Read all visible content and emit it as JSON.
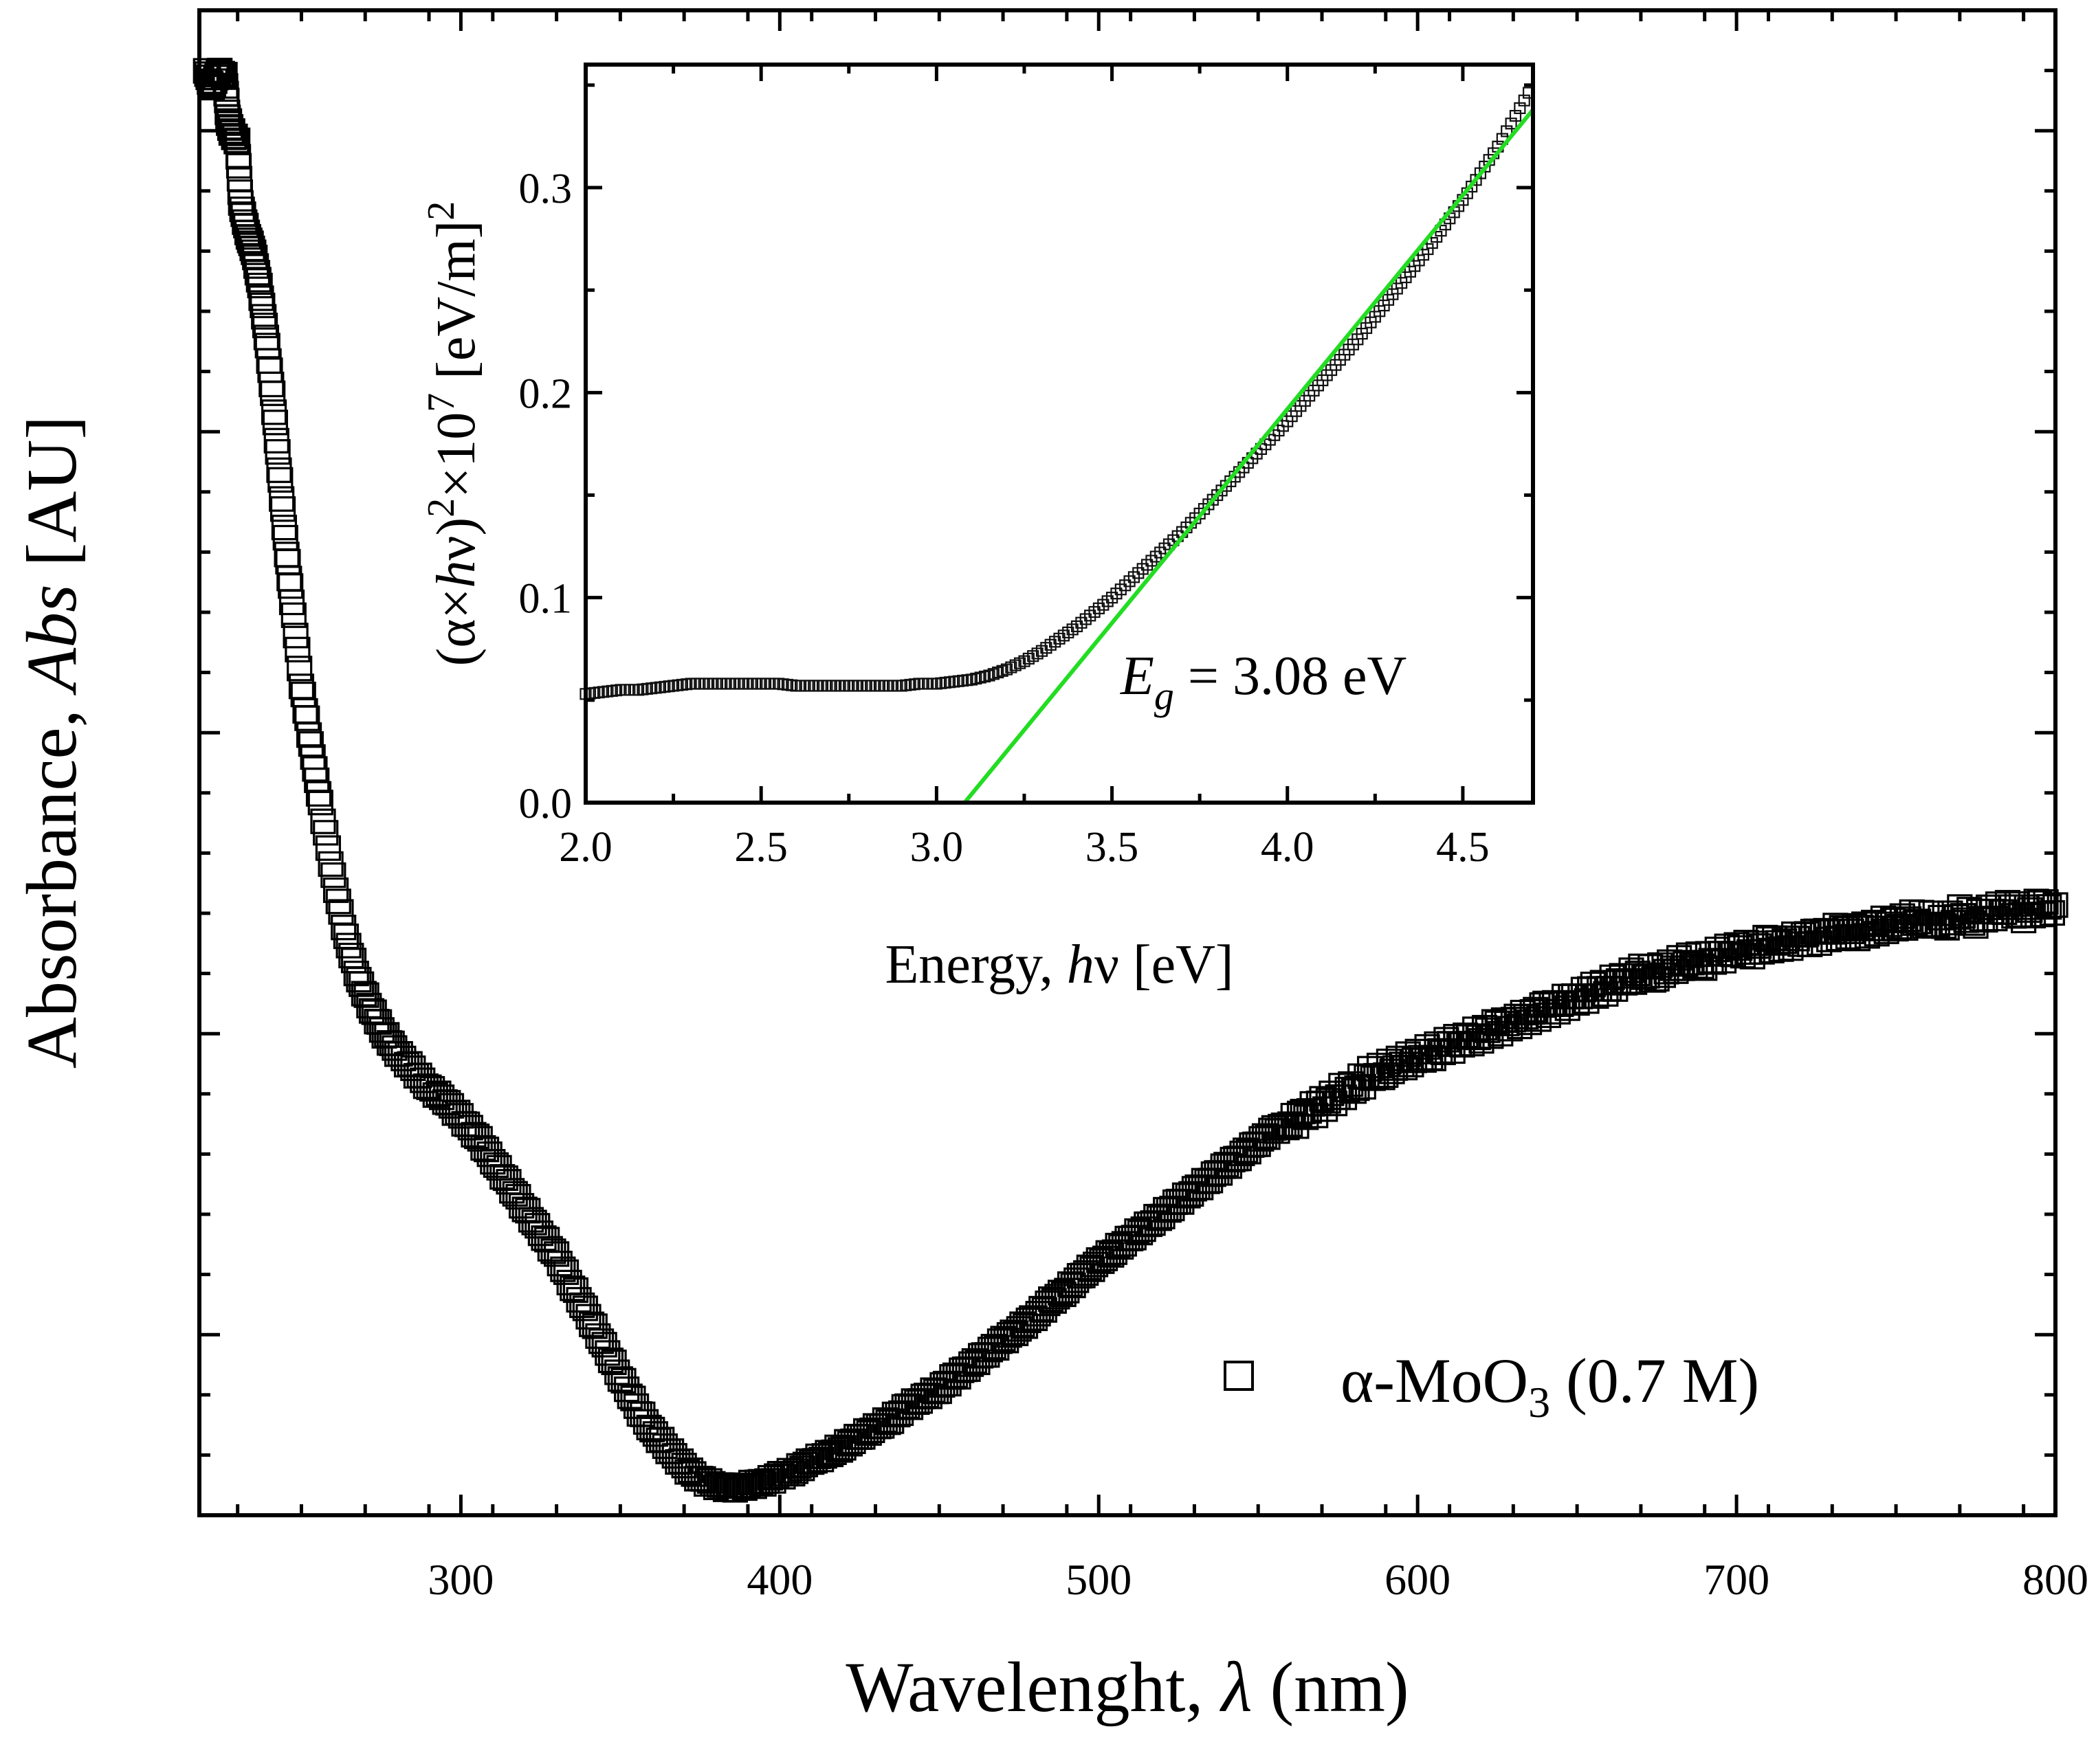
{
  "chart_data": [
    {
      "type": "scatter",
      "title": "",
      "xlabel": {
        "main": "Wavelenght, ",
        "sym": "λ",
        "unit": " (nm)"
      },
      "ylabel": {
        "main": "Absorbance, ",
        "sym": "Abs",
        "unit": " [AU]"
      },
      "xlim": [
        218,
        800
      ],
      "ylim": [
        0.2,
        2.7
      ],
      "xticks": [
        300,
        400,
        500,
        600,
        700,
        800
      ],
      "xtick_labels": [
        "300",
        "400",
        "500",
        "600",
        "700",
        "800"
      ],
      "yticks_unlabeled": [
        0.5,
        1.0,
        1.5,
        2.0,
        2.5
      ],
      "grid": false,
      "legend": {
        "position": "bottom-right",
        "marker": "open-square",
        "label_parts": [
          "α-MoO",
          "3",
          " (0.7 M)"
        ]
      },
      "series": [
        {
          "name": "α-MoO3 (0.7 M)",
          "marker": "open-square",
          "points": [
            [
              220,
              2.6
            ],
            [
              222,
              2.57
            ],
            [
              224,
              2.6
            ],
            [
              226,
              2.59
            ],
            [
              227,
              2.52
            ],
            [
              228,
              2.5
            ],
            [
              230,
              2.48
            ],
            [
              231,
              2.38
            ],
            [
              233,
              2.33
            ],
            [
              235,
              2.3
            ],
            [
              237,
              2.24
            ],
            [
              239,
              2.16
            ],
            [
              241,
              2.06
            ],
            [
              243,
              1.94
            ],
            [
              245,
              1.82
            ],
            [
              247,
              1.72
            ],
            [
              250,
              1.58
            ],
            [
              253,
              1.48
            ],
            [
              256,
              1.38
            ],
            [
              260,
              1.26
            ],
            [
              264,
              1.16
            ],
            [
              268,
              1.09
            ],
            [
              272,
              1.04
            ],
            [
              276,
              1.0
            ],
            [
              280,
              0.97
            ],
            [
              285,
              0.94
            ],
            [
              290,
              0.91
            ],
            [
              295,
              0.89
            ],
            [
              300,
              0.86
            ],
            [
              305,
              0.83
            ],
            [
              310,
              0.79
            ],
            [
              315,
              0.75
            ],
            [
              320,
              0.71
            ],
            [
              325,
              0.67
            ],
            [
              330,
              0.63
            ],
            [
              335,
              0.58
            ],
            [
              340,
              0.53
            ],
            [
              345,
              0.48
            ],
            [
              350,
              0.43
            ],
            [
              355,
              0.38
            ],
            [
              360,
              0.34
            ],
            [
              365,
              0.31
            ],
            [
              370,
              0.28
            ],
            [
              375,
              0.26
            ],
            [
              380,
              0.25
            ],
            [
              385,
              0.245
            ],
            [
              390,
              0.25
            ],
            [
              395,
              0.255
            ],
            [
              400,
              0.265
            ],
            [
              405,
              0.275
            ],
            [
              410,
              0.29
            ],
            [
              415,
              0.3
            ],
            [
              420,
              0.315
            ],
            [
              425,
              0.33
            ],
            [
              430,
              0.345
            ],
            [
              435,
              0.36
            ],
            [
              440,
              0.38
            ],
            [
              445,
              0.395
            ],
            [
              450,
              0.41
            ],
            [
              455,
              0.43
            ],
            [
              460,
              0.45
            ],
            [
              465,
              0.47
            ],
            [
              470,
              0.49
            ],
            [
              475,
              0.51
            ],
            [
              480,
              0.53
            ],
            [
              485,
              0.555
            ],
            [
              490,
              0.575
            ],
            [
              495,
              0.6
            ],
            [
              500,
              0.62
            ],
            [
              505,
              0.64
            ],
            [
              510,
              0.66
            ],
            [
              515,
              0.68
            ],
            [
              520,
              0.7
            ],
            [
              525,
              0.72
            ],
            [
              530,
              0.74
            ],
            [
              535,
              0.76
            ],
            [
              540,
              0.78
            ],
            [
              545,
              0.8
            ],
            [
              550,
              0.82
            ],
            [
              555,
              0.84
            ],
            [
              560,
              0.85
            ],
            [
              565,
              0.87
            ],
            [
              570,
              0.88
            ],
            [
              575,
              0.9
            ],
            [
              580,
              0.91
            ],
            [
              585,
              0.93
            ],
            [
              590,
              0.94
            ],
            [
              595,
              0.95
            ],
            [
              600,
              0.96
            ],
            [
              605,
              0.97
            ],
            [
              610,
              0.98
            ],
            [
              615,
              0.99
            ],
            [
              620,
              1.0
            ],
            [
              625,
              1.01
            ],
            [
              630,
              1.02
            ],
            [
              635,
              1.03
            ],
            [
              640,
              1.04
            ],
            [
              645,
              1.05
            ],
            [
              650,
              1.06
            ],
            [
              655,
              1.07
            ],
            [
              660,
              1.08
            ],
            [
              665,
              1.09
            ],
            [
              670,
              1.1
            ],
            [
              675,
              1.1
            ],
            [
              680,
              1.11
            ],
            [
              685,
              1.12
            ],
            [
              690,
              1.12
            ],
            [
              695,
              1.13
            ],
            [
              700,
              1.14
            ],
            [
              705,
              1.14
            ],
            [
              710,
              1.15
            ],
            [
              715,
              1.15
            ],
            [
              720,
              1.16
            ],
            [
              725,
              1.16
            ],
            [
              730,
              1.17
            ],
            [
              735,
              1.17
            ],
            [
              740,
              1.17
            ],
            [
              745,
              1.18
            ],
            [
              750,
              1.18
            ],
            [
              755,
              1.19
            ],
            [
              760,
              1.19
            ],
            [
              765,
              1.18
            ],
            [
              770,
              1.2
            ],
            [
              775,
              1.19
            ],
            [
              780,
              1.2
            ],
            [
              785,
              1.21
            ],
            [
              790,
              1.2
            ],
            [
              795,
              1.21
            ],
            [
              800,
              1.21
            ]
          ]
        }
      ]
    },
    {
      "type": "scatter",
      "role": "inset",
      "title": "",
      "xlabel": {
        "main": "Energy, ",
        "sym": "h",
        "unit": "ν [eV]"
      },
      "ylabel": {
        "pre": "(α×",
        "sym": "h",
        "mid": "ν)",
        "sup1": "2",
        "mid2": "×10",
        "sup2": "7",
        "post": " [eV/m]",
        "sup3": "2"
      },
      "xlim": [
        2.0,
        4.7
      ],
      "ylim": [
        0.0,
        0.36
      ],
      "xticks": [
        2.0,
        2.5,
        3.0,
        3.5,
        4.0,
        4.5
      ],
      "xtick_labels": [
        "2.0",
        "2.5",
        "3.0",
        "3.5",
        "4.0",
        "4.5"
      ],
      "yticks": [
        0.0,
        0.1,
        0.2,
        0.3
      ],
      "ytick_labels": [
        "0.0",
        "0.1",
        "0.2",
        "0.3"
      ],
      "grid": false,
      "annotation": {
        "sym": "E",
        "sub": "g",
        "text": " = 3.08 eV"
      },
      "series": [
        {
          "marker": "open-square",
          "points": [
            [
              2.0,
              0.053
            ],
            [
              2.05,
              0.054
            ],
            [
              2.1,
              0.055
            ],
            [
              2.15,
              0.055
            ],
            [
              2.2,
              0.056
            ],
            [
              2.25,
              0.057
            ],
            [
              2.3,
              0.058
            ],
            [
              2.35,
              0.058
            ],
            [
              2.4,
              0.058
            ],
            [
              2.45,
              0.058
            ],
            [
              2.5,
              0.058
            ],
            [
              2.55,
              0.058
            ],
            [
              2.6,
              0.057
            ],
            [
              2.65,
              0.057
            ],
            [
              2.7,
              0.057
            ],
            [
              2.75,
              0.057
            ],
            [
              2.8,
              0.057
            ],
            [
              2.85,
              0.057
            ],
            [
              2.9,
              0.057
            ],
            [
              2.95,
              0.058
            ],
            [
              3.0,
              0.058
            ],
            [
              3.05,
              0.059
            ],
            [
              3.1,
              0.06
            ],
            [
              3.15,
              0.062
            ],
            [
              3.2,
              0.065
            ],
            [
              3.25,
              0.069
            ],
            [
              3.3,
              0.074
            ],
            [
              3.35,
              0.08
            ],
            [
              3.4,
              0.086
            ],
            [
              3.45,
              0.093
            ],
            [
              3.5,
              0.1
            ],
            [
              3.55,
              0.108
            ],
            [
              3.6,
              0.116
            ],
            [
              3.65,
              0.124
            ],
            [
              3.7,
              0.132
            ],
            [
              3.75,
              0.141
            ],
            [
              3.8,
              0.15
            ],
            [
              3.85,
              0.159
            ],
            [
              3.9,
              0.168
            ],
            [
              3.95,
              0.177
            ],
            [
              4.0,
              0.186
            ],
            [
              4.05,
              0.196
            ],
            [
              4.1,
              0.206
            ],
            [
              4.15,
              0.216
            ],
            [
              4.2,
              0.226
            ],
            [
              4.25,
              0.237
            ],
            [
              4.3,
              0.248
            ],
            [
              4.35,
              0.259
            ],
            [
              4.4,
              0.27
            ],
            [
              4.45,
              0.282
            ],
            [
              4.5,
              0.294
            ],
            [
              4.55,
              0.307
            ],
            [
              4.6,
              0.32
            ],
            [
              4.65,
              0.335
            ],
            [
              4.7,
              0.35
            ]
          ]
        },
        {
          "type": "line",
          "color": "#22dd22",
          "points": [
            [
              3.08,
              0.0
            ],
            [
              4.7,
              0.338
            ]
          ]
        }
      ]
    }
  ]
}
